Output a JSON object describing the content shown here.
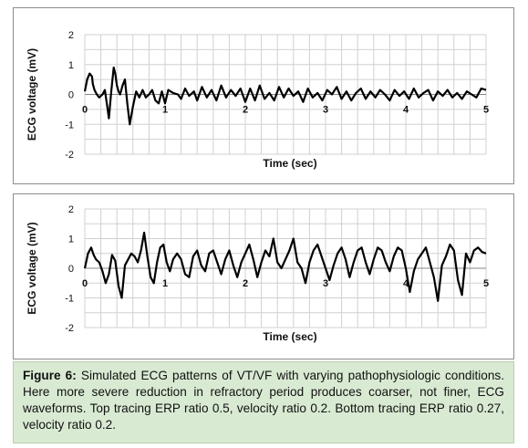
{
  "chart_data": [
    {
      "type": "line",
      "title": "",
      "xlabel": "Time (sec)",
      "ylabel": "ECG voltage (mV)",
      "xlim": [
        0,
        5
      ],
      "ylim": [
        -2,
        2
      ],
      "xticks": [
        "0",
        "1",
        "2",
        "3",
        "4",
        "5"
      ],
      "yticks": [
        "2",
        "1",
        "0",
        "-1",
        "-2"
      ],
      "grid": true,
      "series": [
        {
          "color": "#000000",
          "x": [
            0.0,
            0.03,
            0.06,
            0.09,
            0.1,
            0.12,
            0.15,
            0.18,
            0.22,
            0.25,
            0.28,
            0.3,
            0.33,
            0.36,
            0.38,
            0.4,
            0.42,
            0.44,
            0.47,
            0.5,
            0.53,
            0.56,
            0.6,
            0.64,
            0.68,
            0.72,
            0.76,
            0.8,
            0.84,
            0.88,
            0.92,
            0.96,
            1.0,
            1.04,
            1.1,
            1.16,
            1.2,
            1.25,
            1.3,
            1.36,
            1.4,
            1.46,
            1.52,
            1.58,
            1.64,
            1.7,
            1.76,
            1.82,
            1.88,
            1.94,
            2.0,
            2.06,
            2.12,
            2.18,
            2.24,
            2.3,
            2.36,
            2.42,
            2.48,
            2.54,
            2.6,
            2.66,
            2.72,
            2.78,
            2.84,
            2.9,
            2.96,
            3.02,
            3.08,
            3.14,
            3.2,
            3.26,
            3.32,
            3.38,
            3.44,
            3.5,
            3.56,
            3.62,
            3.68,
            3.74,
            3.8,
            3.86,
            3.92,
            3.98,
            4.04,
            4.1,
            4.16,
            4.22,
            4.28,
            4.34,
            4.4,
            4.46,
            4.52,
            4.58,
            4.64,
            4.7,
            4.76,
            4.82,
            4.88,
            4.94,
            5.0
          ],
          "y": [
            0.1,
            0.5,
            0.7,
            0.6,
            0.35,
            0.15,
            0.0,
            -0.1,
            0.0,
            0.15,
            -0.4,
            -0.8,
            0.1,
            0.9,
            0.7,
            0.3,
            0.1,
            0.0,
            0.3,
            0.5,
            -0.3,
            -1.0,
            -0.4,
            0.1,
            -0.1,
            0.15,
            -0.1,
            0.0,
            0.15,
            -0.2,
            -0.3,
            0.1,
            -0.3,
            0.15,
            0.05,
            0.0,
            -0.15,
            0.2,
            -0.05,
            0.1,
            -0.2,
            0.25,
            -0.1,
            0.15,
            -0.2,
            0.3,
            -0.1,
            0.15,
            -0.05,
            0.2,
            -0.25,
            0.2,
            -0.2,
            0.3,
            -0.15,
            0.05,
            -0.2,
            0.25,
            -0.1,
            0.2,
            -0.05,
            0.1,
            -0.25,
            0.2,
            -0.1,
            0.05,
            -0.2,
            0.15,
            0.0,
            0.25,
            -0.15,
            0.1,
            -0.2,
            0.05,
            0.2,
            -0.15,
            0.1,
            -0.1,
            0.15,
            0.0,
            -0.2,
            0.15,
            -0.05,
            0.1,
            -0.15,
            0.2,
            -0.1,
            0.05,
            0.15,
            -0.2,
            0.1,
            -0.05,
            0.15,
            -0.1,
            0.05,
            -0.15,
            0.1,
            0.0,
            -0.1,
            0.2,
            0.15
          ]
        }
      ]
    },
    {
      "type": "line",
      "title": "",
      "xlabel": "Time (sec)",
      "ylabel": "ECG voltage (mV)",
      "xlim": [
        0,
        5
      ],
      "ylim": [
        -2,
        2
      ],
      "xticks": [
        "0",
        "1",
        "2",
        "3",
        "4",
        "5"
      ],
      "yticks": [
        "2",
        "1",
        "0",
        "-1",
        "-2"
      ],
      "grid": true,
      "series": [
        {
          "color": "#000000",
          "x": [
            0.0,
            0.04,
            0.08,
            0.11,
            0.14,
            0.18,
            0.22,
            0.26,
            0.3,
            0.34,
            0.38,
            0.42,
            0.46,
            0.5,
            0.54,
            0.58,
            0.62,
            0.66,
            0.7,
            0.74,
            0.78,
            0.82,
            0.86,
            0.9,
            0.94,
            0.98,
            1.02,
            1.06,
            1.1,
            1.15,
            1.2,
            1.25,
            1.3,
            1.35,
            1.4,
            1.45,
            1.5,
            1.55,
            1.6,
            1.65,
            1.7,
            1.75,
            1.8,
            1.85,
            1.9,
            1.95,
            2.0,
            2.05,
            2.1,
            2.15,
            2.2,
            2.25,
            2.3,
            2.35,
            2.4,
            2.45,
            2.5,
            2.55,
            2.6,
            2.65,
            2.7,
            2.75,
            2.8,
            2.85,
            2.9,
            2.95,
            3.0,
            3.05,
            3.1,
            3.15,
            3.2,
            3.25,
            3.3,
            3.35,
            3.4,
            3.45,
            3.5,
            3.55,
            3.6,
            3.65,
            3.7,
            3.75,
            3.8,
            3.85,
            3.9,
            3.95,
            4.0,
            4.05,
            4.1,
            4.15,
            4.2,
            4.25,
            4.3,
            4.35,
            4.4,
            4.45,
            4.5,
            4.55,
            4.6,
            4.65,
            4.7,
            4.75,
            4.8,
            4.85,
            4.9,
            4.95,
            5.0
          ],
          "y": [
            0.0,
            0.5,
            0.7,
            0.45,
            0.3,
            0.2,
            -0.1,
            -0.5,
            -0.2,
            0.45,
            0.25,
            -0.6,
            -1.0,
            0.1,
            0.3,
            0.5,
            0.4,
            0.2,
            0.6,
            1.2,
            0.4,
            -0.3,
            -0.5,
            0.2,
            0.7,
            0.8,
            0.2,
            -0.1,
            0.3,
            0.5,
            0.3,
            -0.2,
            -0.3,
            0.4,
            0.6,
            0.1,
            -0.1,
            0.5,
            0.6,
            0.2,
            -0.2,
            0.3,
            0.6,
            0.1,
            -0.3,
            0.2,
            0.5,
            0.8,
            0.3,
            -0.3,
            0.2,
            0.6,
            0.4,
            1.0,
            0.2,
            0.0,
            0.3,
            0.6,
            1.0,
            0.2,
            0.0,
            -0.5,
            0.2,
            0.6,
            0.8,
            0.4,
            0.0,
            -0.4,
            0.1,
            0.5,
            0.7,
            0.3,
            -0.3,
            0.2,
            0.6,
            0.7,
            0.2,
            -0.2,
            0.3,
            0.7,
            0.6,
            0.2,
            -0.1,
            0.4,
            0.7,
            0.6,
            0.0,
            -0.8,
            -0.1,
            0.3,
            0.5,
            0.7,
            0.2,
            -0.3,
            -1.1,
            0.1,
            0.4,
            0.8,
            0.6,
            -0.4,
            -0.9,
            0.5,
            0.2,
            0.6,
            0.7,
            0.55,
            0.5
          ]
        }
      ]
    }
  ],
  "caption": {
    "label": "Figure 6:",
    "text": " Simulated ECG patterns of VT/VF with varying pathophysiologic conditions. Here more severe reduction in refractory period produces coarser, not finer, ECG waveforms. Top tracing ERP ratio 0.5, velocity ratio 0.2. Bottom tracing ERP ratio 0.27, velocity ratio 0.2."
  }
}
